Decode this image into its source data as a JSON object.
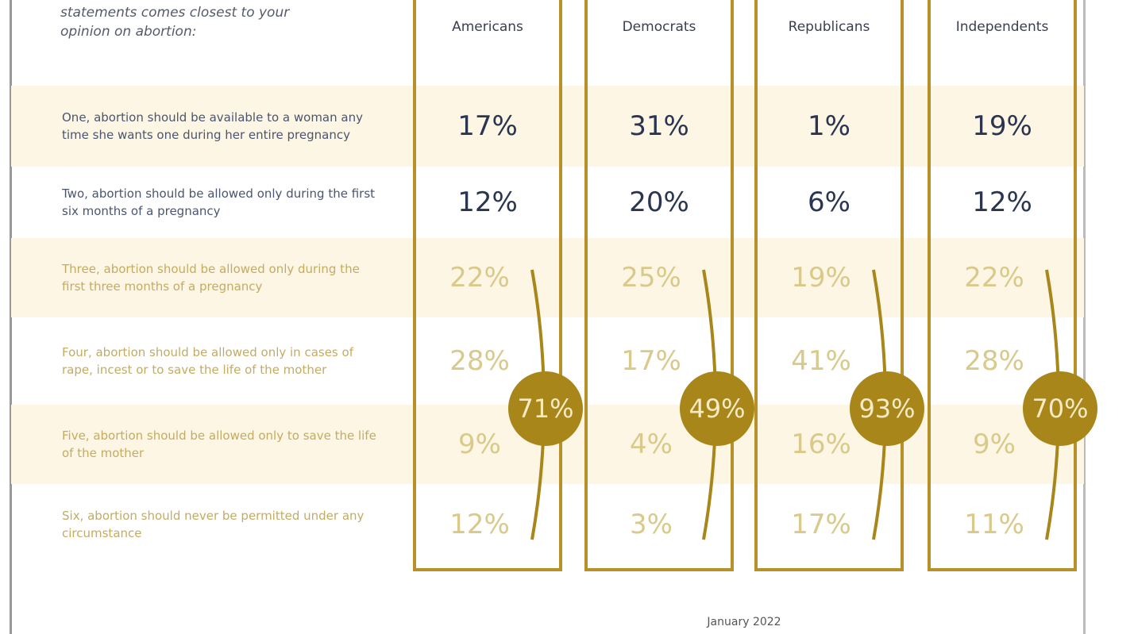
{
  "question": [
    "statements comes closest to your",
    "opinion on abortion:"
  ],
  "columns": [
    "Americans",
    "Democrats",
    "Republicans",
    "Independents"
  ],
  "rows": [
    {
      "label": "One, abortion should be available to a woman any time she wants one during her entire pregnancy",
      "values": [
        "17%",
        "31%",
        "1%",
        "19%"
      ]
    },
    {
      "label": "Two, abortion should be allowed only during the first six months of a pregnancy",
      "values": [
        "12%",
        "20%",
        "6%",
        "12%"
      ]
    },
    {
      "label": "Three, abortion should be allowed only during the first three months of a pregnancy",
      "values": [
        "22%",
        "25%",
        "19%",
        "22%"
      ]
    },
    {
      "label": "Four, abortion should be allowed only in cases of rape, incest or to save the life of the mother",
      "values": [
        "28%",
        "17%",
        "41%",
        "28%"
      ]
    },
    {
      "label": "Five, abortion should be allowed only to save the life of the mother",
      "values": [
        "9%",
        "4%",
        "16%",
        "9%"
      ]
    },
    {
      "label": "Six, abortion should never be permitted under any circumstance",
      "values": [
        "12%",
        "3%",
        "17%",
        "11%"
      ]
    }
  ],
  "totals": [
    "71%",
    "49%",
    "93%",
    "70%"
  ],
  "footer": "January 2022"
}
